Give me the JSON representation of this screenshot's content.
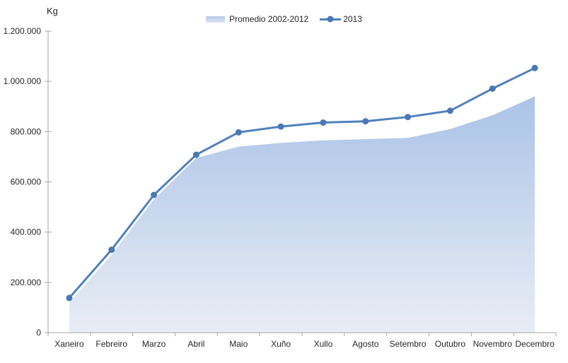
{
  "y_axis": {
    "unit_label": "Kg",
    "tick_labels": [
      "0",
      "200.000",
      "400.000",
      "600.000",
      "800.000",
      "1.000.000",
      "1.200.000"
    ]
  },
  "legend": {
    "area_label": "Promedio 2002-2012",
    "line_label": "2013"
  },
  "chart_data": {
    "type": "combo",
    "categories": [
      "Xaneiro",
      "Febreiro",
      "Marzo",
      "Abril",
      "Maio",
      "Xuño",
      "Xullo",
      "Agosto",
      "Setembro",
      "Outubro",
      "Novembro",
      "Decembro"
    ],
    "series": [
      {
        "name": "Promedio 2002-2012",
        "type": "area",
        "values": [
          120000,
          310000,
          530000,
          695000,
          740000,
          755000,
          765000,
          770000,
          775000,
          810000,
          865000,
          940000
        ]
      },
      {
        "name": "2013",
        "type": "line",
        "values": [
          138000,
          330000,
          548000,
          708000,
          797000,
          820000,
          836000,
          841000,
          858000,
          883000,
          971000,
          1053000
        ]
      }
    ],
    "title": "",
    "xlabel": "",
    "ylabel": "Kg",
    "ylim": [
      0,
      1200000
    ],
    "y_tick_step": 200000,
    "grid": false,
    "legend_position": "top-center",
    "colors": {
      "line": "#4f81bd",
      "marker": "#4a77b5",
      "area_top": "#aac3e7",
      "area_bottom": "#e9edf5",
      "axis": "#a6a6a6",
      "text": "#262626"
    }
  }
}
